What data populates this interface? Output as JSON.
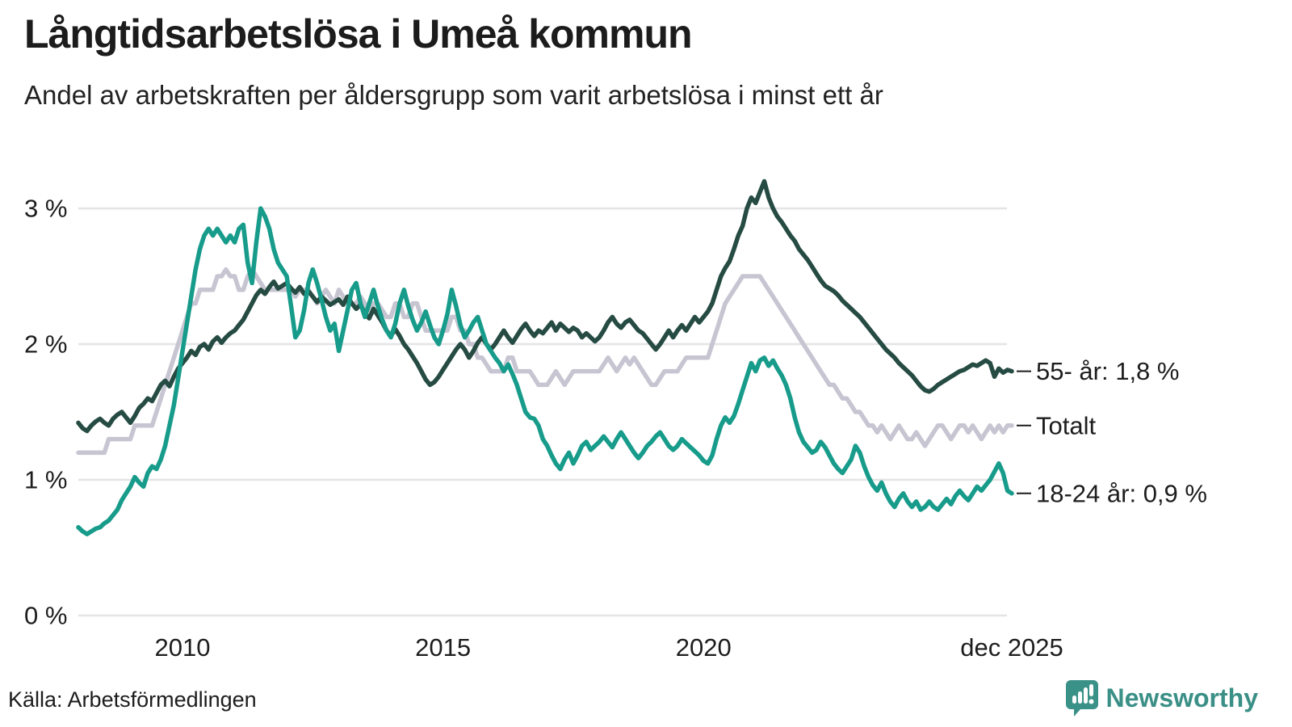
{
  "chart_data": {
    "type": "line",
    "title": "Långtidsarbetslösa i Umeå kommun",
    "subtitle": "Andel av arbetskraften per åldersgrupp som varit arbetslösa i minst ett år",
    "unit": "%",
    "x_start_year": 2008,
    "x_step_months": 1,
    "n_points": 216,
    "ylim": [
      0,
      3.4
    ],
    "grid": true,
    "legend_position": "right-end-labels",
    "y_ticks": [
      {
        "value": 0,
        "label": "0 %"
      },
      {
        "value": 1,
        "label": "1 %"
      },
      {
        "value": 2,
        "label": "2 %"
      },
      {
        "value": 3,
        "label": "3 %"
      }
    ],
    "x_ticks": [
      {
        "year": 2010.0,
        "label": "2010"
      },
      {
        "year": 2015.0,
        "label": "2015"
      },
      {
        "year": 2020.0,
        "label": "2020"
      },
      {
        "year": 2025.9167,
        "label": "dec 2025"
      }
    ],
    "series": [
      {
        "name": "Totalt",
        "color": "#c7c5d1",
        "end_label": "Totalt",
        "end_value_pct": 1.4,
        "values": [
          1.2,
          1.2,
          1.2,
          1.2,
          1.2,
          1.2,
          1.2,
          1.3,
          1.3,
          1.3,
          1.3,
          1.3,
          1.3,
          1.4,
          1.4,
          1.4,
          1.4,
          1.4,
          1.5,
          1.6,
          1.7,
          1.8,
          1.9,
          2.0,
          2.1,
          2.2,
          2.3,
          2.3,
          2.4,
          2.4,
          2.4,
          2.4,
          2.5,
          2.5,
          2.55,
          2.5,
          2.5,
          2.4,
          2.4,
          2.5,
          2.55,
          2.5,
          2.45,
          2.4,
          2.4,
          2.4,
          2.4,
          2.4,
          2.4,
          2.4,
          2.35,
          2.4,
          2.4,
          2.4,
          2.35,
          2.3,
          2.35,
          2.4,
          2.35,
          2.3,
          2.4,
          2.35,
          2.3,
          2.3,
          2.3,
          2.35,
          2.3,
          2.25,
          2.3,
          2.3,
          2.25,
          2.2,
          2.2,
          2.3,
          2.3,
          2.2,
          2.2,
          2.3,
          2.3,
          2.2,
          2.1,
          2.1,
          2.1,
          2.1,
          2.1,
          2.1,
          2.2,
          2.2,
          2.1,
          2.1,
          2.0,
          2.0,
          1.9,
          1.9,
          1.85,
          1.8,
          1.8,
          1.8,
          1.8,
          1.9,
          1.9,
          1.8,
          1.8,
          1.8,
          1.8,
          1.75,
          1.7,
          1.7,
          1.7,
          1.75,
          1.8,
          1.75,
          1.7,
          1.75,
          1.8,
          1.8,
          1.8,
          1.8,
          1.8,
          1.8,
          1.8,
          1.85,
          1.9,
          1.85,
          1.8,
          1.85,
          1.9,
          1.85,
          1.9,
          1.85,
          1.8,
          1.75,
          1.7,
          1.7,
          1.75,
          1.8,
          1.8,
          1.8,
          1.8,
          1.85,
          1.9,
          1.9,
          1.9,
          1.9,
          1.9,
          1.9,
          2.0,
          2.1,
          2.2,
          2.3,
          2.35,
          2.4,
          2.45,
          2.5,
          2.5,
          2.5,
          2.5,
          2.5,
          2.45,
          2.4,
          2.35,
          2.3,
          2.25,
          2.2,
          2.15,
          2.1,
          2.05,
          2.0,
          1.95,
          1.9,
          1.85,
          1.8,
          1.75,
          1.7,
          1.7,
          1.65,
          1.6,
          1.6,
          1.55,
          1.5,
          1.5,
          1.45,
          1.4,
          1.4,
          1.35,
          1.4,
          1.35,
          1.3,
          1.35,
          1.4,
          1.35,
          1.3,
          1.3,
          1.35,
          1.3,
          1.25,
          1.3,
          1.35,
          1.4,
          1.4,
          1.35,
          1.3,
          1.35,
          1.4,
          1.4,
          1.35,
          1.4,
          1.35,
          1.3,
          1.35,
          1.4,
          1.35,
          1.4,
          1.35,
          1.4,
          1.4
        ]
      },
      {
        "name": "55- år",
        "color": "#254b42",
        "end_label": "55- år: 1,8 %",
        "end_value_pct": 1.8,
        "values": [
          1.42,
          1.38,
          1.36,
          1.4,
          1.43,
          1.45,
          1.42,
          1.4,
          1.45,
          1.48,
          1.5,
          1.46,
          1.42,
          1.47,
          1.53,
          1.56,
          1.6,
          1.58,
          1.64,
          1.7,
          1.73,
          1.69,
          1.76,
          1.82,
          1.86,
          1.9,
          1.95,
          1.92,
          1.98,
          2.0,
          1.96,
          2.02,
          2.05,
          2.01,
          2.05,
          2.08,
          2.1,
          2.14,
          2.18,
          2.24,
          2.3,
          2.36,
          2.4,
          2.37,
          2.42,
          2.46,
          2.41,
          2.43,
          2.45,
          2.41,
          2.38,
          2.42,
          2.37,
          2.39,
          2.35,
          2.31,
          2.35,
          2.32,
          2.29,
          2.31,
          2.33,
          2.29,
          2.35,
          2.3,
          2.26,
          2.29,
          2.23,
          2.19,
          2.26,
          2.21,
          2.16,
          2.1,
          2.06,
          2.11,
          2.06,
          2.0,
          1.96,
          1.91,
          1.86,
          1.8,
          1.74,
          1.7,
          1.72,
          1.76,
          1.81,
          1.86,
          1.91,
          1.96,
          2.0,
          1.96,
          1.9,
          1.95,
          2.01,
          2.05,
          2.0,
          1.96,
          2.0,
          2.05,
          2.1,
          2.05,
          2.01,
          2.06,
          2.11,
          2.15,
          2.1,
          2.06,
          2.1,
          2.08,
          2.12,
          2.16,
          2.1,
          2.15,
          2.12,
          2.09,
          2.12,
          2.1,
          2.05,
          2.08,
          2.05,
          2.02,
          2.05,
          2.1,
          2.16,
          2.2,
          2.15,
          2.12,
          2.16,
          2.18,
          2.14,
          2.1,
          2.08,
          2.04,
          2.0,
          1.96,
          2.0,
          2.05,
          2.1,
          2.05,
          2.1,
          2.14,
          2.1,
          2.15,
          2.2,
          2.16,
          2.2,
          2.24,
          2.3,
          2.4,
          2.5,
          2.56,
          2.61,
          2.7,
          2.8,
          2.87,
          3.0,
          3.08,
          3.04,
          3.12,
          3.2,
          3.08,
          3.0,
          2.94,
          2.9,
          2.85,
          2.8,
          2.76,
          2.7,
          2.66,
          2.62,
          2.57,
          2.52,
          2.47,
          2.43,
          2.41,
          2.39,
          2.36,
          2.32,
          2.29,
          2.26,
          2.23,
          2.2,
          2.16,
          2.12,
          2.08,
          2.04,
          2.0,
          1.96,
          1.93,
          1.9,
          1.86,
          1.83,
          1.8,
          1.77,
          1.73,
          1.69,
          1.66,
          1.65,
          1.67,
          1.7,
          1.72,
          1.74,
          1.76,
          1.78,
          1.8,
          1.81,
          1.83,
          1.85,
          1.84,
          1.86,
          1.88,
          1.86,
          1.76,
          1.82,
          1.79,
          1.81,
          1.8
        ]
      },
      {
        "name": "18-24 år",
        "color": "#179b8a",
        "end_label": "18-24 år: 0,9 %",
        "end_value_pct": 0.9,
        "values": [
          0.65,
          0.62,
          0.6,
          0.62,
          0.64,
          0.65,
          0.68,
          0.7,
          0.74,
          0.78,
          0.85,
          0.9,
          0.95,
          1.02,
          0.98,
          0.95,
          1.05,
          1.1,
          1.08,
          1.15,
          1.25,
          1.4,
          1.55,
          1.75,
          1.95,
          2.15,
          2.35,
          2.55,
          2.7,
          2.8,
          2.85,
          2.8,
          2.85,
          2.8,
          2.75,
          2.8,
          2.75,
          2.85,
          2.88,
          2.6,
          2.45,
          2.75,
          3.0,
          2.94,
          2.85,
          2.7,
          2.6,
          2.55,
          2.5,
          2.28,
          2.05,
          2.1,
          2.25,
          2.45,
          2.55,
          2.45,
          2.33,
          2.2,
          2.1,
          2.15,
          1.95,
          2.1,
          2.25,
          2.4,
          2.45,
          2.3,
          2.2,
          2.3,
          2.4,
          2.28,
          2.18,
          2.1,
          2.05,
          2.15,
          2.3,
          2.4,
          2.28,
          2.18,
          2.1,
          2.16,
          2.24,
          2.14,
          2.05,
          2.0,
          2.1,
          2.22,
          2.4,
          2.28,
          2.14,
          2.05,
          2.1,
          2.16,
          2.2,
          2.1,
          2.0,
          1.95,
          1.9,
          1.86,
          1.8,
          1.85,
          1.78,
          1.7,
          1.6,
          1.5,
          1.46,
          1.45,
          1.4,
          1.3,
          1.25,
          1.18,
          1.12,
          1.08,
          1.15,
          1.2,
          1.12,
          1.18,
          1.25,
          1.28,
          1.22,
          1.25,
          1.28,
          1.32,
          1.28,
          1.24,
          1.3,
          1.35,
          1.3,
          1.25,
          1.2,
          1.16,
          1.2,
          1.25,
          1.28,
          1.32,
          1.35,
          1.3,
          1.25,
          1.22,
          1.25,
          1.3,
          1.27,
          1.24,
          1.21,
          1.18,
          1.14,
          1.12,
          1.18,
          1.3,
          1.4,
          1.46,
          1.42,
          1.47,
          1.56,
          1.66,
          1.76,
          1.86,
          1.8,
          1.88,
          1.9,
          1.84,
          1.88,
          1.82,
          1.77,
          1.7,
          1.6,
          1.46,
          1.35,
          1.28,
          1.24,
          1.2,
          1.22,
          1.28,
          1.24,
          1.18,
          1.12,
          1.08,
          1.05,
          1.1,
          1.15,
          1.25,
          1.2,
          1.1,
          1.02,
          0.96,
          0.92,
          0.98,
          0.9,
          0.84,
          0.8,
          0.86,
          0.9,
          0.84,
          0.8,
          0.84,
          0.78,
          0.8,
          0.84,
          0.8,
          0.78,
          0.82,
          0.86,
          0.82,
          0.88,
          0.92,
          0.88,
          0.85,
          0.9,
          0.95,
          0.92,
          0.96,
          1.0,
          1.06,
          1.12,
          1.05,
          0.92,
          0.9
        ]
      }
    ]
  },
  "footer": {
    "source": "Källa: Arbetsförmedlingen",
    "brand": "Newsworthy"
  },
  "colors": {
    "series_total": "#c7c5d1",
    "series_55plus": "#254b42",
    "series_18_24": "#179b8a",
    "gridline": "#e4e4e7",
    "text": "#1d1d1d",
    "brand_teal": "#3a8f86"
  }
}
